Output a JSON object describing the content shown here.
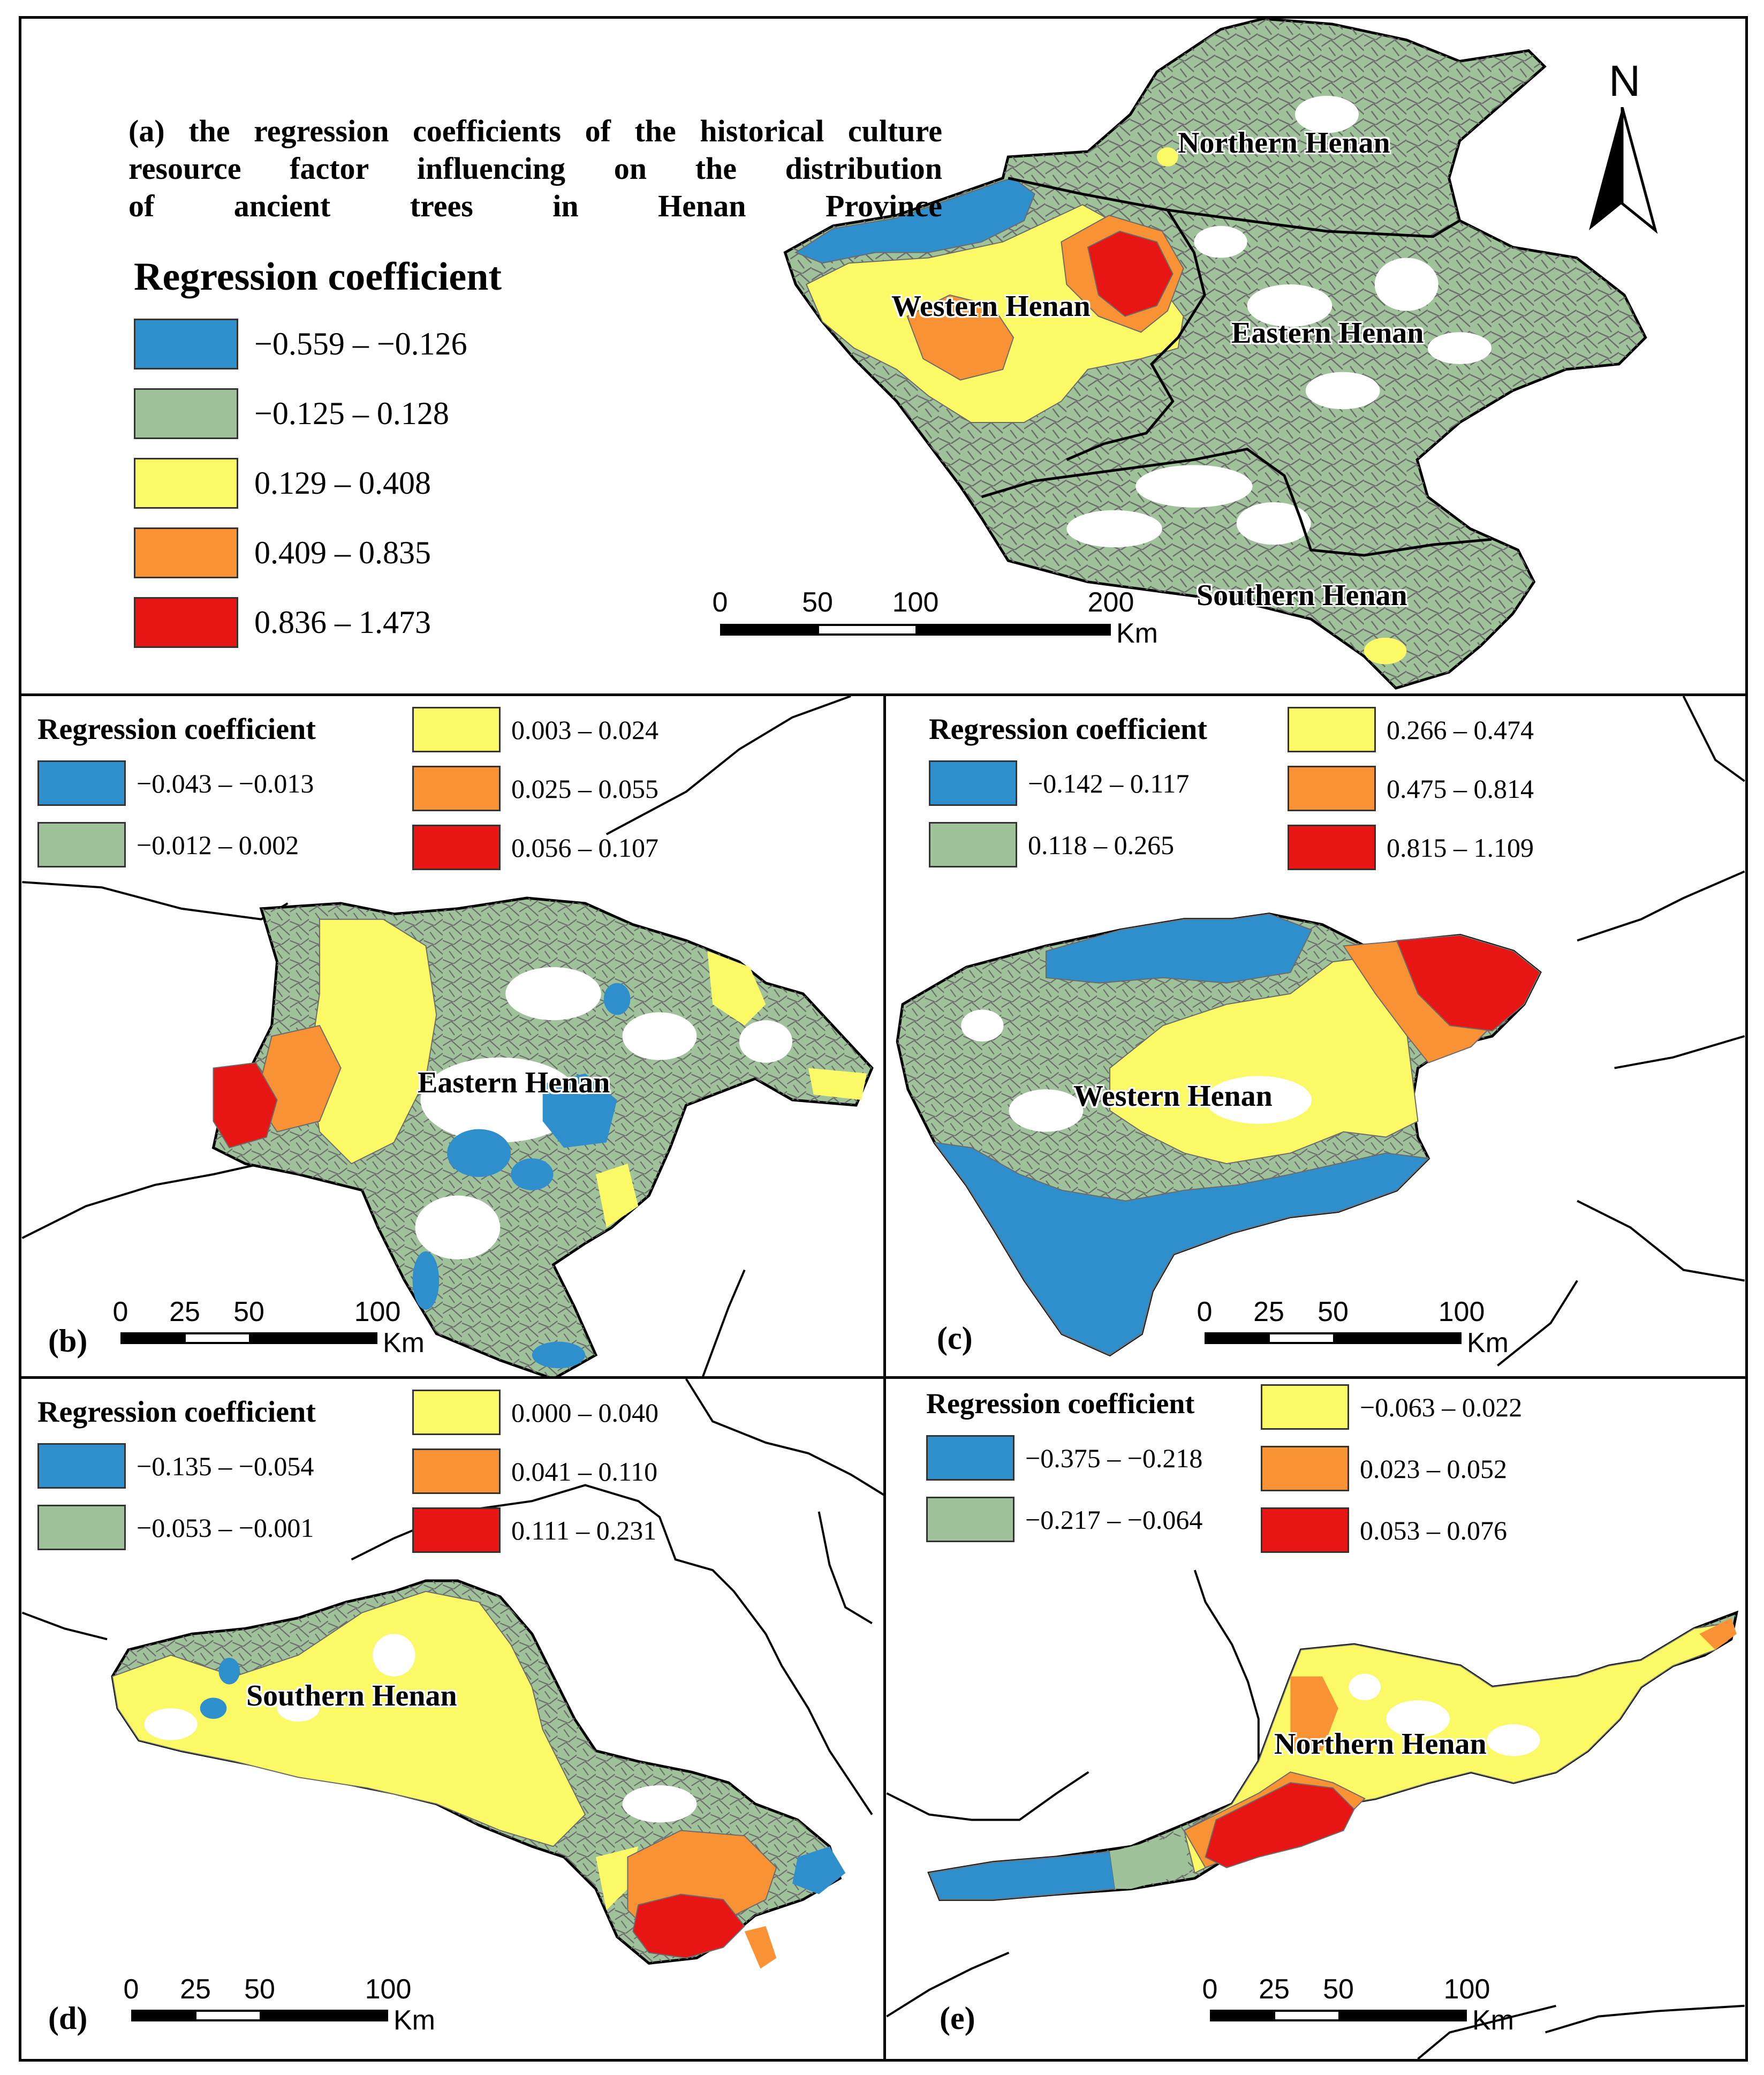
{
  "colors": {
    "blue": "#2f8fcc",
    "green": "#9fc29a",
    "yellow": "#fbfa66",
    "orange": "#f99234",
    "red": "#e81515",
    "boundary": "#000000",
    "district_line": "#6b6b6b"
  },
  "north_label": "N",
  "km_label": "Km",
  "panel_a": {
    "letter": "",
    "title_lines": [
      "(a) the regression coefficients of the historical culture",
      "resource factor influencing on the distribution",
      "of ancient trees in Henan Province"
    ],
    "legend_title": "Regression coefficient",
    "legend": [
      {
        "label": "−0.559 – −0.126",
        "color": "#2f8fcc"
      },
      {
        "label": "−0.125 – 0.128",
        "color": "#9fc29a"
      },
      {
        "label": "0.129 – 0.408",
        "color": "#fbfa66"
      },
      {
        "label": "0.409 – 0.835",
        "color": "#f99234"
      },
      {
        "label": "0.836 – 1.473",
        "color": "#e81515"
      }
    ],
    "regions": [
      "Northern Henan",
      "Western Henan",
      "Eastern Henan",
      "Southern Henan"
    ],
    "scale_ticks": [
      "0",
      "50",
      "100",
      "200"
    ]
  },
  "panel_b": {
    "letter": "(b)",
    "legend_title": "Regression coefficient",
    "legend": [
      {
        "label": "−0.043 – −0.013",
        "color": "#2f8fcc"
      },
      {
        "label": "−0.012 – 0.002",
        "color": "#9fc29a"
      },
      {
        "label": "0.003 – 0.024",
        "color": "#fbfa66"
      },
      {
        "label": "0.025 – 0.055",
        "color": "#f99234"
      },
      {
        "label": "0.056 – 0.107",
        "color": "#e81515"
      }
    ],
    "region": "Eastern Henan",
    "scale_ticks": [
      "0",
      "25",
      "50",
      "100"
    ]
  },
  "panel_c": {
    "letter": "(c)",
    "legend_title": "Regression coefficient",
    "legend": [
      {
        "label": "−0.142 – 0.117",
        "color": "#2f8fcc"
      },
      {
        "label": "0.118 – 0.265",
        "color": "#9fc29a"
      },
      {
        "label": "0.266 – 0.474",
        "color": "#fbfa66"
      },
      {
        "label": "0.475 – 0.814",
        "color": "#f99234"
      },
      {
        "label": "0.815 – 1.109",
        "color": "#e81515"
      }
    ],
    "region": "Western Henan",
    "scale_ticks": [
      "0",
      "25",
      "50",
      "100"
    ]
  },
  "panel_d": {
    "letter": "(d)",
    "legend_title": "Regression coefficient",
    "legend": [
      {
        "label": "−0.135 – −0.054",
        "color": "#2f8fcc"
      },
      {
        "label": "−0.053 – −0.001",
        "color": "#9fc29a"
      },
      {
        "label": "0.000 – 0.040",
        "color": "#fbfa66"
      },
      {
        "label": "0.041 – 0.110",
        "color": "#f99234"
      },
      {
        "label": "0.111 – 0.231",
        "color": "#e81515"
      }
    ],
    "region": "Southern Henan",
    "scale_ticks": [
      "0",
      "25",
      "50",
      "100"
    ]
  },
  "panel_e": {
    "letter": "(e)",
    "legend_title": "Regression coefficient",
    "legend": [
      {
        "label": "−0.375 – −0.218",
        "color": "#2f8fcc"
      },
      {
        "label": "−0.217 – −0.064",
        "color": "#9fc29a"
      },
      {
        "label": "−0.063 – 0.022",
        "color": "#fbfa66"
      },
      {
        "label": "0.023 – 0.052",
        "color": "#f99234"
      },
      {
        "label": "0.053 – 0.076",
        "color": "#e81515"
      }
    ],
    "region": "Northern Henan",
    "scale_ticks": [
      "0",
      "25",
      "50",
      "100"
    ]
  }
}
